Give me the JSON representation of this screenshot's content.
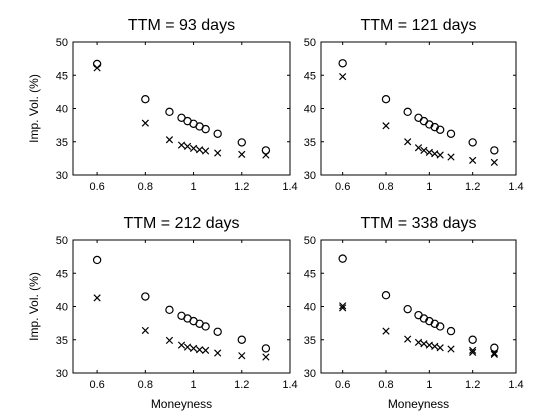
{
  "chart_data": [
    {
      "type": "scatter",
      "title": "TTM = 93 days",
      "xlabel": "",
      "ylabel": "Imp. Vol. (%)",
      "xlim": [
        0.5,
        1.4
      ],
      "ylim": [
        30,
        50
      ],
      "xticks": [
        0.6,
        0.8,
        1,
        1.2,
        1.4
      ],
      "yticks": [
        30,
        35,
        40,
        45,
        50
      ],
      "series": [
        {
          "marker": "circle",
          "x": [
            0.6,
            0.8,
            0.9,
            0.95,
            0.975,
            1.0,
            1.025,
            1.05,
            1.1,
            1.2,
            1.3
          ],
          "y": [
            46.7,
            41.4,
            39.5,
            38.6,
            38.1,
            37.7,
            37.3,
            36.9,
            36.2,
            34.9,
            33.7
          ]
        },
        {
          "marker": "x",
          "x": [
            0.6,
            0.8,
            0.9,
            0.95,
            0.975,
            1.0,
            1.025,
            1.05,
            1.1,
            1.2,
            1.3
          ],
          "y": [
            46.1,
            37.8,
            35.3,
            34.5,
            34.3,
            34.0,
            33.8,
            33.6,
            33.3,
            33.1,
            33.0
          ]
        }
      ]
    },
    {
      "type": "scatter",
      "title": "TTM = 121 days",
      "xlabel": "",
      "ylabel": "",
      "xlim": [
        0.5,
        1.4
      ],
      "ylim": [
        30,
        50
      ],
      "xticks": [
        0.6,
        0.8,
        1,
        1.2,
        1.4
      ],
      "yticks": [
        30,
        35,
        40,
        45,
        50
      ],
      "series": [
        {
          "marker": "circle",
          "x": [
            0.6,
            0.8,
            0.9,
            0.95,
            0.975,
            1.0,
            1.025,
            1.05,
            1.1,
            1.2,
            1.3
          ],
          "y": [
            46.8,
            41.4,
            39.5,
            38.6,
            38.1,
            37.6,
            37.2,
            36.8,
            36.2,
            34.9,
            33.7
          ]
        },
        {
          "marker": "x",
          "x": [
            0.6,
            0.8,
            0.9,
            0.95,
            0.975,
            1.0,
            1.025,
            1.05,
            1.1,
            1.2,
            1.3
          ],
          "y": [
            44.8,
            37.4,
            35.0,
            34.1,
            33.7,
            33.4,
            33.2,
            33.0,
            32.7,
            32.2,
            31.9
          ]
        }
      ]
    },
    {
      "type": "scatter",
      "title": "TTM = 212 days",
      "xlabel": "Moneyness",
      "ylabel": "Imp. Vol. (%)",
      "xlim": [
        0.5,
        1.4
      ],
      "ylim": [
        30,
        50
      ],
      "xticks": [
        0.6,
        0.8,
        1,
        1.2,
        1.4
      ],
      "yticks": [
        30,
        35,
        40,
        45,
        50
      ],
      "series": [
        {
          "marker": "circle",
          "x": [
            0.6,
            0.8,
            0.9,
            0.95,
            0.975,
            1.0,
            1.025,
            1.05,
            1.1,
            1.2,
            1.3
          ],
          "y": [
            47.0,
            41.5,
            39.5,
            38.6,
            38.2,
            37.8,
            37.4,
            37.0,
            36.2,
            35.0,
            33.7
          ]
        },
        {
          "marker": "x",
          "x": [
            0.6,
            0.8,
            0.9,
            0.95,
            0.975,
            1.0,
            1.025,
            1.05,
            1.1,
            1.2,
            1.3
          ],
          "y": [
            41.3,
            36.4,
            34.9,
            34.2,
            33.9,
            33.7,
            33.5,
            33.4,
            33.0,
            32.6,
            32.4
          ]
        }
      ]
    },
    {
      "type": "scatter",
      "title": "TTM = 338 days",
      "xlabel": "Moneyness",
      "ylabel": "",
      "xlim": [
        0.5,
        1.4
      ],
      "ylim": [
        30,
        50
      ],
      "xticks": [
        0.6,
        0.8,
        1,
        1.2,
        1.4
      ],
      "yticks": [
        30,
        35,
        40,
        45,
        50
      ],
      "series": [
        {
          "marker": "circle",
          "x": [
            0.6,
            0.8,
            0.9,
            0.95,
            0.975,
            1.0,
            1.025,
            1.05,
            1.1,
            1.2,
            1.3
          ],
          "y": [
            47.2,
            41.7,
            39.6,
            38.7,
            38.2,
            37.8,
            37.4,
            37.0,
            36.3,
            35.0,
            33.8
          ]
        },
        {
          "marker": "x",
          "x": [
            0.6,
            0.6,
            0.8,
            0.9,
            0.95,
            0.975,
            1.0,
            1.025,
            1.05,
            1.1,
            1.2,
            1.2,
            1.3,
            1.3
          ],
          "y": [
            40.1,
            39.8,
            36.3,
            35.1,
            34.6,
            34.4,
            34.2,
            34.0,
            33.8,
            33.6,
            33.4,
            33.1,
            33.0,
            32.8
          ]
        }
      ]
    }
  ]
}
